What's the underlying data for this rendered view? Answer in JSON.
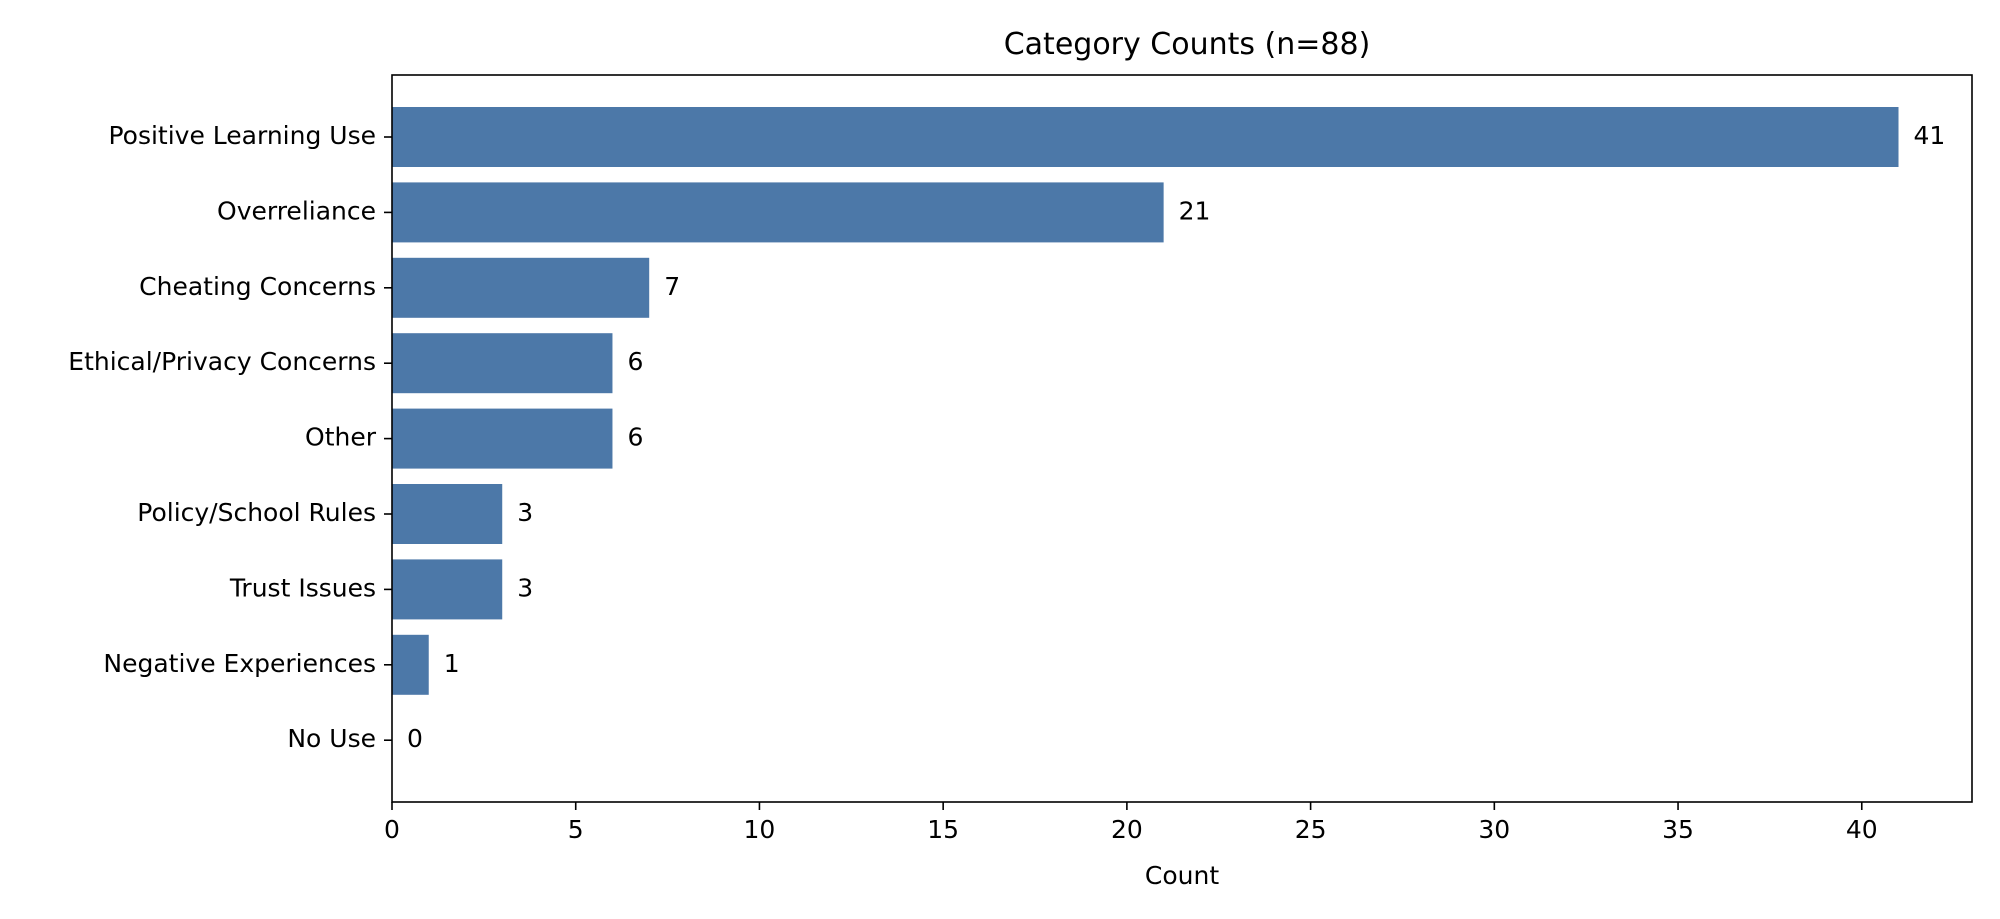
{
  "chart_data": {
    "type": "bar",
    "orientation": "horizontal",
    "title": "Category Counts (n=88)",
    "xlabel": "Count",
    "ylabel": "",
    "categories": [
      "Positive Learning Use",
      "Overreliance",
      "Cheating Concerns",
      "Ethical/Privacy Concerns",
      "Other",
      "Policy/School Rules",
      "Trust Issues",
      "Negative Experiences",
      "No Use"
    ],
    "values": [
      41,
      21,
      7,
      6,
      6,
      3,
      3,
      1,
      0
    ],
    "xlim": [
      0,
      43
    ],
    "xticks": [
      0,
      5,
      10,
      15,
      20,
      25,
      30,
      35,
      40
    ],
    "grid": false,
    "legend": "none",
    "bar_color": "#4c78a8",
    "data_labels": true
  }
}
